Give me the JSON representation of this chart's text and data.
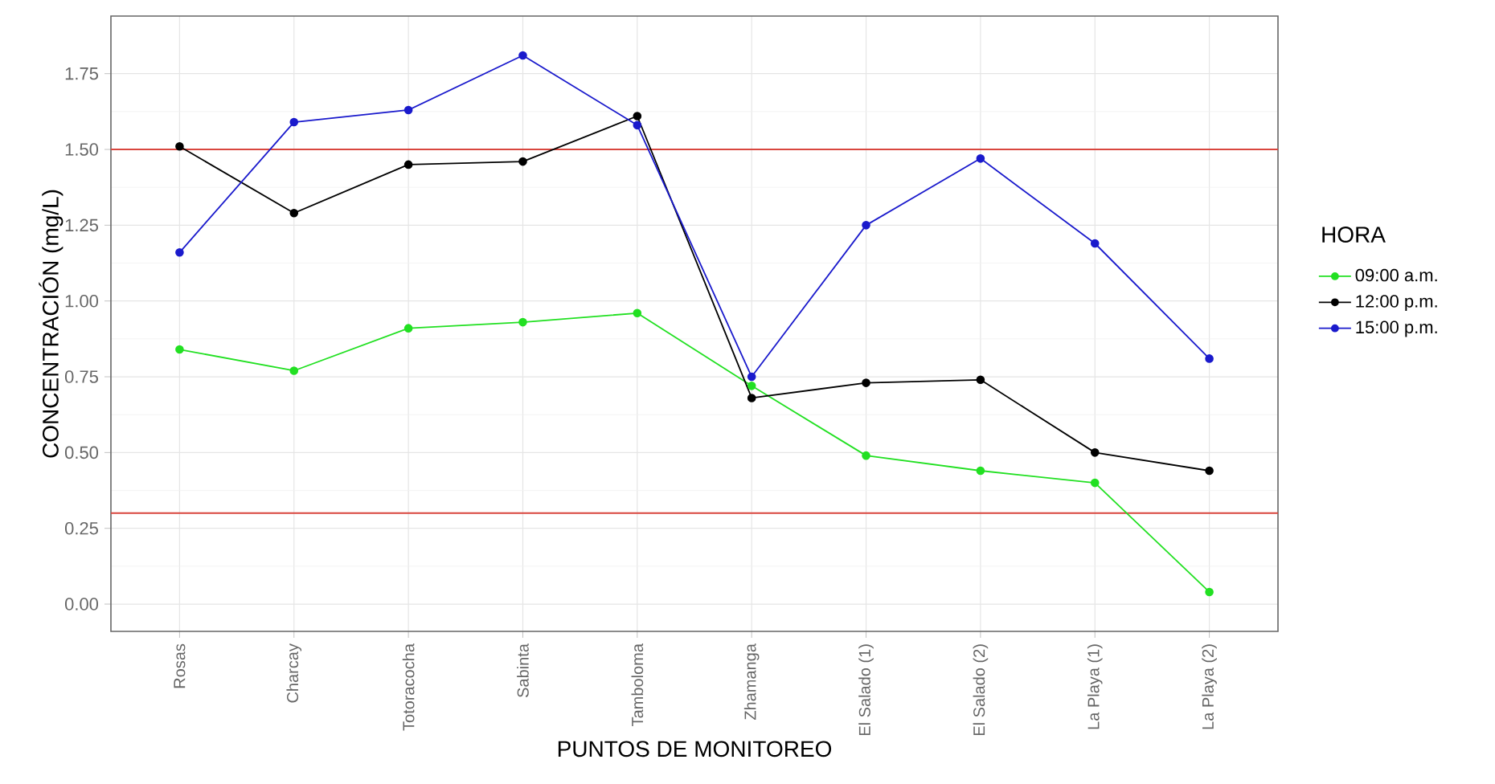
{
  "chart_data": {
    "type": "line",
    "xlabel": "PUNTOS DE MONITOREO",
    "ylabel": "CONCENTRACIÓN (mg/L)",
    "legend_title": "HORA",
    "categories": [
      "Rosas",
      "Charcay",
      "Totoracocha",
      "Sabinta",
      "Tamboloma",
      "Zhamanga",
      "El Salado (1)",
      "El Salado (2)",
      "La Playa (1)",
      "La Playa (2)"
    ],
    "series": [
      {
        "name": "09:00 a.m.",
        "color": "#22e022",
        "values": [
          0.84,
          0.77,
          0.91,
          0.93,
          0.96,
          0.72,
          0.49,
          0.44,
          0.4,
          0.04
        ]
      },
      {
        "name": "12:00 p.m.",
        "color": "#000000",
        "values": [
          1.51,
          1.29,
          1.45,
          1.46,
          1.61,
          0.68,
          0.73,
          0.74,
          0.5,
          0.44
        ]
      },
      {
        "name": "15:00 p.m.",
        "color": "#1a1acc",
        "values": [
          1.16,
          1.59,
          1.63,
          1.81,
          1.58,
          0.75,
          1.25,
          1.47,
          1.19,
          0.81
        ]
      }
    ],
    "ylim": [
      -0.09,
      1.94
    ],
    "yticks": [
      {
        "value": 0,
        "label": "0.00"
      },
      0.25,
      {
        "value": 0.5,
        "label": "0.50"
      },
      0.75,
      {
        "value": 1,
        "label": "1.00"
      },
      1.25,
      {
        "value": 1.5,
        "label": "1.50"
      },
      1.75
    ],
    "ref_lines": [
      {
        "axis": "y",
        "value": 1.5,
        "color": "#d9463e"
      },
      {
        "axis": "y",
        "value": 0.3,
        "color": "#d9463e"
      }
    ],
    "grid": true,
    "legend": "right",
    "marker": "circle",
    "line_style": "solid"
  }
}
